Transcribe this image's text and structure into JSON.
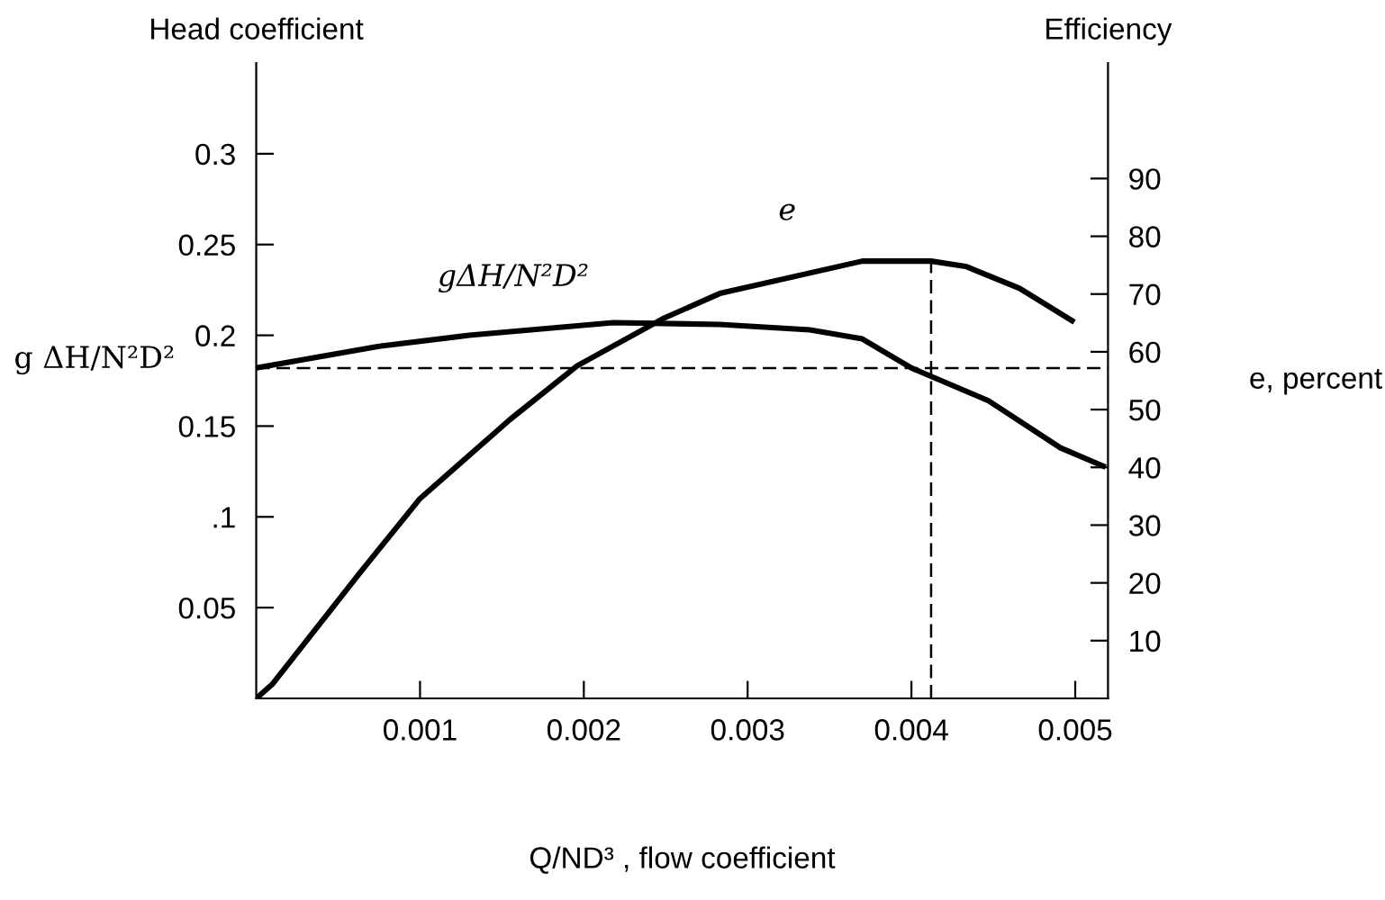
{
  "chart_data": {
    "type": "line",
    "xlabel": "Q/ND³ , flow coefficient",
    "ylabel": "g ΔH/N²D²",
    "y2label": "e, percent",
    "annotations": [
      "Head coefficient",
      "Efficiency"
    ],
    "series": [
      {
        "name": "gΔH/N²D²",
        "color": "#000000",
        "x": [
          0,
          0.00075,
          0.0013,
          0.00218,
          0.00283,
          0.00338,
          0.0037,
          0.004,
          0.00447,
          0.00491,
          0.00517
        ],
        "values": [
          0.182,
          0.194,
          0.2,
          0.207,
          0.206,
          0.203,
          0.198,
          0.182,
          0.164,
          0.138,
          0.128
        ]
      },
      {
        "name": "e",
        "color": "#000000",
        "axis": "y2",
        "x": [
          0,
          0.0001,
          0.00064,
          0.001,
          0.00155,
          0.00196,
          0.00248,
          0.00283,
          0.0037,
          0.00412,
          0.00433,
          0.00466,
          0.00498
        ],
        "values": [
          0,
          2.5,
          22,
          34.6,
          48.3,
          57.6,
          65.7,
          70.1,
          75.7,
          75.7,
          74.8,
          71,
          65.4
        ]
      }
    ],
    "xlim": [
      0,
      0.0052
    ],
    "xticks": [
      0.001,
      0.002,
      0.003,
      0.004,
      0.005
    ],
    "ylim": [
      0,
      0.35
    ],
    "yticks": [
      0.05,
      {
        "value": 0.1,
        "label": ".1"
      },
      0.15,
      0.2,
      0.25,
      0.3
    ],
    "y2lim": [
      0,
      110
    ],
    "y2ticks": [
      10,
      20,
      30,
      40,
      50,
      60,
      70,
      80,
      90
    ],
    "ref_lines": [
      {
        "axis": "y",
        "value": 0.182,
        "line_style": "dashed",
        "color": "#000000"
      },
      {
        "axis": "x",
        "value": 0.00412,
        "line_style": "dashed",
        "color": "#000000"
      }
    ],
    "legend": false,
    "grid": false,
    "marker": "none",
    "line_style": "solid"
  }
}
